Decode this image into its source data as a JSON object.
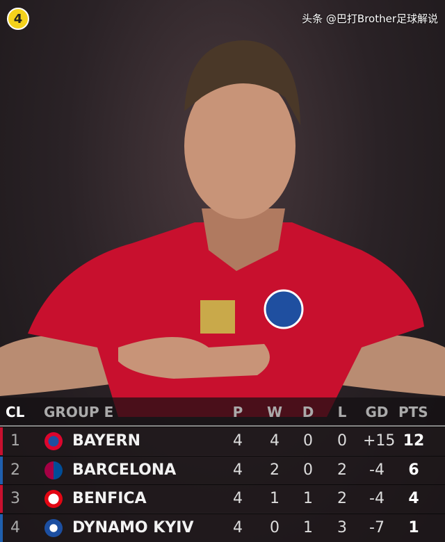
{
  "badge": "4",
  "colors": {
    "badge": "#f4d21c",
    "shirt": "#c8102e",
    "stripe_red": "#c8102e",
    "stripe_blue": "#1f5fae"
  },
  "table": {
    "headers": {
      "rank": "CL",
      "group": "GROUP E",
      "p": "P",
      "w": "W",
      "d": "D",
      "l": "L",
      "gd": "GD",
      "pts": "PTS"
    },
    "rows": [
      {
        "pos": "1",
        "team": "BAYERN",
        "crest": "bayern-crest",
        "p": "4",
        "w": "4",
        "d": "0",
        "l": "0",
        "gd": "+15",
        "pts": "12"
      },
      {
        "pos": "2",
        "team": "BARCELONA",
        "crest": "barcelona-crest",
        "p": "4",
        "w": "2",
        "d": "0",
        "l": "2",
        "gd": "-4",
        "pts": "6"
      },
      {
        "pos": "3",
        "team": "BENFICA",
        "crest": "benfica-crest",
        "p": "4",
        "w": "1",
        "d": "1",
        "l": "2",
        "gd": "-4",
        "pts": "4"
      },
      {
        "pos": "4",
        "team": "DYNAMO KYIV",
        "crest": "dynamo-kyiv-crest",
        "p": "4",
        "w": "0",
        "d": "1",
        "l": "3",
        "gd": "-7",
        "pts": "1"
      }
    ]
  },
  "watermark": "头条 @巴打Brother足球解说"
}
